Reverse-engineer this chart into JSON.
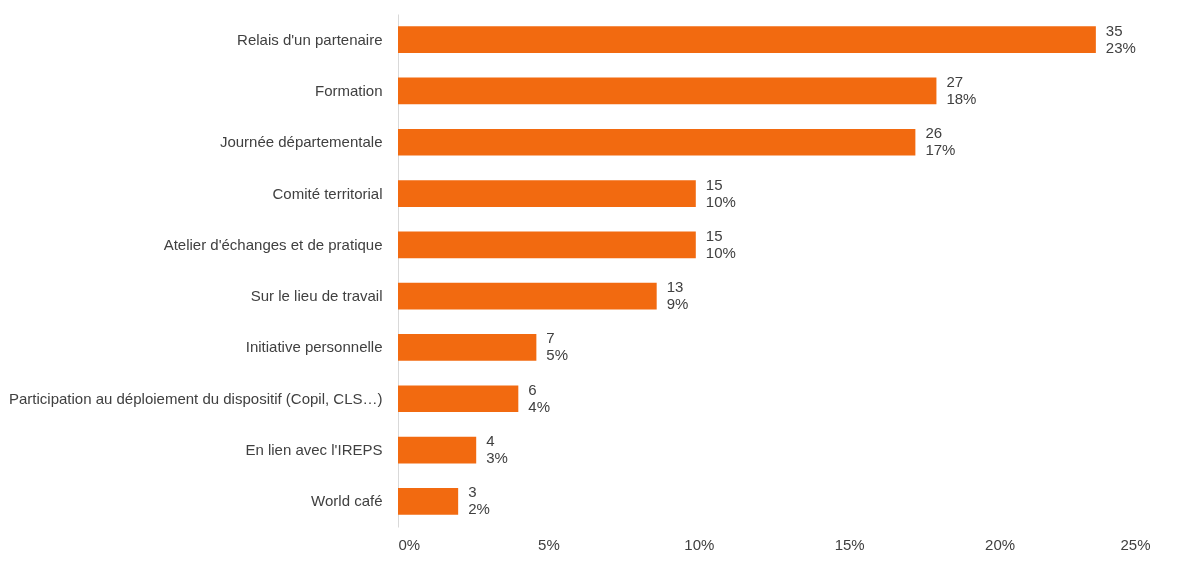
{
  "chart_data": {
    "type": "bar",
    "orientation": "horizontal",
    "categories": [
      "Relais d'un partenaire",
      "Formation",
      "Journée départementale",
      "Comité territorial",
      "Atelier d'échanges et de pratique",
      "Sur le lieu de travail",
      "Initiative personnelle",
      "Participation au déploiement du dispositif (Copil, CLS…)",
      "En lien avec l'IREPS",
      "World café"
    ],
    "values": [
      23.2,
      17.9,
      17.2,
      9.9,
      9.9,
      8.6,
      4.6,
      4.0,
      2.6,
      2.0
    ],
    "value_labels": [
      "35\n23%",
      "27\n18%",
      "26\n17%",
      "15\n10%",
      "15\n10%",
      "13\n9%",
      "7\n5%",
      "6\n4%",
      "4\n3%",
      "3\n2%"
    ],
    "color": "#f26a10",
    "xlim": [
      0,
      25
    ],
    "xticks": [
      {
        "value": 0,
        "label": "0%"
      },
      {
        "value": 5,
        "label": "5%"
      },
      {
        "value": 10,
        "label": "10%"
      },
      {
        "value": 15,
        "label": "15%"
      },
      {
        "value": 20,
        "label": "20%"
      },
      {
        "value": 25,
        "label": "25%"
      }
    ],
    "grid": false
  }
}
